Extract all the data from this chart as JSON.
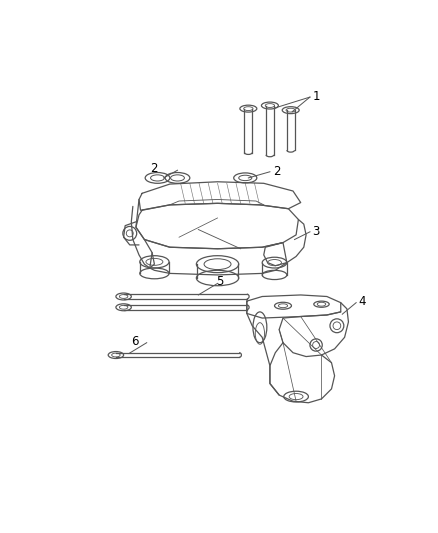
{
  "background_color": "#ffffff",
  "line_color": "#555555",
  "text_color": "#000000",
  "fig_width": 4.38,
  "fig_height": 5.33,
  "dpi": 100
}
